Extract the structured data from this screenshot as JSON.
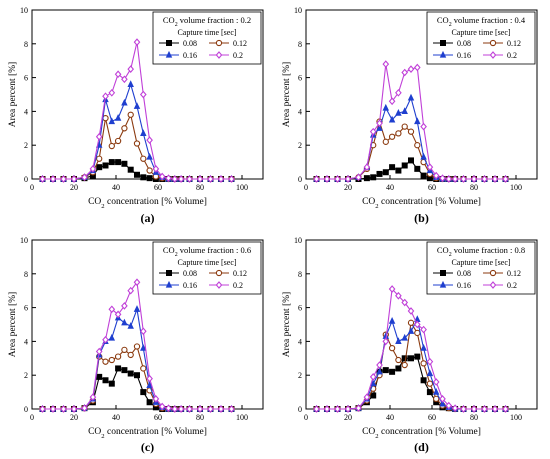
{
  "colors": {
    "s008": "#000000",
    "s012": "#8b3a0f",
    "s016": "#1f3fcf",
    "s02": "#c040d8"
  },
  "markers": {
    "s008": "square",
    "s012": "circle",
    "s016": "triangle",
    "s02": "diamond"
  },
  "chart_data": [
    {
      "type": "line",
      "panel_label": "(a)",
      "annotation_title": "CO₂ volume fraction : 0.2",
      "legend_title": "Capture time [sec]",
      "xlabel": "CO₂ concentration [% Volume]",
      "ylabel": "Area percent [%]",
      "xlim": [
        0,
        110
      ],
      "ylim": [
        0,
        10
      ],
      "x_ticks": [
        0,
        20,
        40,
        60,
        80,
        100
      ],
      "y_ticks": [
        0,
        2,
        4,
        6,
        8,
        10
      ],
      "x": [
        5,
        10,
        15,
        20,
        25,
        29,
        32,
        35,
        38,
        41,
        44,
        47,
        50,
        53,
        56,
        59,
        62,
        65,
        68,
        71,
        75,
        80,
        85,
        90,
        95
      ],
      "series": [
        {
          "name": "0.08",
          "values": [
            0,
            0,
            0,
            0,
            0.05,
            0.2,
            0.7,
            0.8,
            1.0,
            1.0,
            0.9,
            0.55,
            0.25,
            0.1,
            0.05,
            0,
            0,
            0,
            0,
            0,
            0,
            0,
            0,
            0,
            0
          ]
        },
        {
          "name": "0.12",
          "values": [
            0,
            0,
            0,
            0,
            0.1,
            0.4,
            1.2,
            3.6,
            1.95,
            2.25,
            3.0,
            3.8,
            2.1,
            1.2,
            0.5,
            0.15,
            0.05,
            0,
            0,
            0,
            0,
            0,
            0,
            0,
            0
          ]
        },
        {
          "name": "0.16",
          "values": [
            0,
            0,
            0,
            0,
            0.1,
            0.5,
            2.0,
            4.7,
            3.4,
            3.6,
            4.5,
            5.6,
            4.3,
            2.7,
            1.3,
            0.4,
            0.1,
            0,
            0,
            0,
            0,
            0,
            0,
            0,
            0
          ]
        },
        {
          "name": "0.2",
          "values": [
            0,
            0,
            0,
            0,
            0.1,
            0.6,
            2.5,
            4.9,
            5.1,
            6.2,
            5.9,
            6.5,
            8.1,
            5.0,
            2.3,
            0.6,
            0.15,
            0.05,
            0,
            0,
            0,
            0,
            0,
            0,
            0
          ]
        }
      ]
    },
    {
      "type": "line",
      "panel_label": "(b)",
      "annotation_title": "CO₂ volume fraction : 0.4",
      "legend_title": "Capture time [sec]",
      "xlabel": "CO₂ concentration [% Volume]",
      "ylabel": "Area percent [%]",
      "xlim": [
        0,
        110
      ],
      "ylim": [
        0,
        10
      ],
      "x_ticks": [
        0,
        20,
        40,
        60,
        80,
        100
      ],
      "y_ticks": [
        0,
        2,
        4,
        6,
        8,
        10
      ],
      "x": [
        5,
        10,
        15,
        20,
        25,
        29,
        32,
        35,
        38,
        41,
        44,
        47,
        50,
        53,
        56,
        59,
        62,
        65,
        68,
        71,
        75,
        80,
        85,
        90,
        95
      ],
      "series": [
        {
          "name": "0.08",
          "values": [
            0,
            0,
            0,
            0,
            0,
            0.05,
            0.1,
            0.3,
            0.4,
            0.7,
            0.5,
            0.8,
            1.1,
            0.6,
            0.2,
            0.05,
            0,
            0,
            0,
            0,
            0,
            0,
            0,
            0,
            0
          ]
        },
        {
          "name": "0.12",
          "values": [
            0,
            0,
            0,
            0,
            0.1,
            0.6,
            2.0,
            3.4,
            2.2,
            2.5,
            2.7,
            3.1,
            2.8,
            2.0,
            1.0,
            0.3,
            0.05,
            0,
            0,
            0,
            0,
            0,
            0,
            0,
            0
          ]
        },
        {
          "name": "0.16",
          "values": [
            0,
            0,
            0,
            0,
            0.1,
            0.7,
            2.6,
            3.0,
            4.2,
            3.5,
            3.9,
            4.0,
            4.8,
            3.4,
            1.3,
            0.5,
            0.1,
            0,
            0,
            0,
            0,
            0,
            0,
            0,
            0
          ]
        },
        {
          "name": "0.2",
          "values": [
            0,
            0,
            0,
            0,
            0.1,
            0.7,
            2.8,
            3.3,
            6.8,
            4.6,
            5.1,
            6.3,
            6.5,
            6.6,
            3.1,
            0.7,
            0.2,
            0.05,
            0,
            0,
            0,
            0,
            0,
            0,
            0
          ]
        }
      ]
    },
    {
      "type": "line",
      "panel_label": "(c)",
      "annotation_title": "CO₂ volume fraction : 0.6",
      "legend_title": "Capture time [sec]",
      "xlabel": "CO₂ concentration [% Volume]",
      "ylabel": "Area percent [%]",
      "xlim": [
        0,
        110
      ],
      "ylim": [
        0,
        10
      ],
      "x_ticks": [
        0,
        20,
        40,
        60,
        80,
        100
      ],
      "y_ticks": [
        0,
        2,
        4,
        6,
        8,
        10
      ],
      "x": [
        5,
        10,
        15,
        20,
        25,
        29,
        32,
        35,
        38,
        41,
        44,
        47,
        50,
        53,
        56,
        59,
        62,
        65,
        68,
        71,
        75,
        80,
        85,
        90,
        95
      ],
      "series": [
        {
          "name": "0.08",
          "values": [
            0,
            0,
            0,
            0,
            0.05,
            0.4,
            1.9,
            1.7,
            1.5,
            2.4,
            2.3,
            2.1,
            2.0,
            1.0,
            0.4,
            0.1,
            0,
            0,
            0,
            0,
            0,
            0,
            0,
            0,
            0
          ]
        },
        {
          "name": "0.12",
          "values": [
            0,
            0,
            0,
            0,
            0.05,
            0.5,
            3.1,
            2.8,
            2.9,
            3.1,
            3.5,
            3.2,
            3.7,
            2.4,
            1.1,
            0.3,
            0.05,
            0,
            0,
            0,
            0,
            0,
            0,
            0,
            0
          ]
        },
        {
          "name": "0.16",
          "values": [
            0,
            0,
            0,
            0,
            0.05,
            0.6,
            3.2,
            4.0,
            4.2,
            5.4,
            5.1,
            4.9,
            5.9,
            3.6,
            1.4,
            0.4,
            0.1,
            0,
            0,
            0,
            0,
            0,
            0,
            0,
            0
          ]
        },
        {
          "name": "0.2",
          "values": [
            0,
            0,
            0,
            0,
            0.05,
            0.7,
            3.4,
            4.1,
            5.9,
            5.6,
            6.1,
            7.0,
            7.5,
            4.6,
            1.8,
            0.6,
            0.15,
            0.05,
            0,
            0,
            0,
            0,
            0,
            0,
            0
          ]
        }
      ]
    },
    {
      "type": "line",
      "panel_label": "(d)",
      "annotation_title": "CO₂ volume fraction : 0.8",
      "legend_title": "Capture time [sec]",
      "xlabel": "CO₂ concentration [% Volume]",
      "ylabel": "Area percent [%]",
      "xlim": [
        0,
        110
      ],
      "ylim": [
        0,
        10
      ],
      "x_ticks": [
        0,
        20,
        40,
        60,
        80,
        100
      ],
      "y_ticks": [
        0,
        2,
        4,
        6,
        8,
        10
      ],
      "x": [
        5,
        10,
        15,
        20,
        25,
        29,
        32,
        35,
        38,
        41,
        44,
        47,
        50,
        53,
        56,
        59,
        62,
        65,
        68,
        71,
        75,
        80,
        85,
        90,
        95
      ],
      "series": [
        {
          "name": "0.08",
          "values": [
            0,
            0,
            0,
            0,
            0.05,
            0.4,
            0.8,
            2.2,
            2.3,
            2.2,
            2.4,
            3.0,
            3.0,
            3.1,
            1.7,
            1.0,
            0.4,
            0.1,
            0.05,
            0,
            0,
            0,
            0,
            0,
            0
          ]
        },
        {
          "name": "0.12",
          "values": [
            0,
            0,
            0,
            0,
            0.05,
            0.5,
            1.2,
            2.0,
            4.4,
            3.6,
            2.9,
            2.6,
            5.1,
            4.5,
            2.7,
            1.5,
            0.6,
            0.2,
            0.05,
            0,
            0,
            0,
            0,
            0,
            0
          ]
        },
        {
          "name": "0.16",
          "values": [
            0,
            0,
            0,
            0,
            0.05,
            0.6,
            1.5,
            2.2,
            4.3,
            5.2,
            4.0,
            4.2,
            4.6,
            5.3,
            3.6,
            2.1,
            1.0,
            0.3,
            0.1,
            0,
            0,
            0,
            0,
            0,
            0
          ]
        },
        {
          "name": "0.2",
          "values": [
            0,
            0,
            0,
            0,
            0.05,
            0.7,
            1.9,
            2.6,
            4.0,
            7.1,
            6.7,
            6.3,
            5.8,
            5.0,
            4.7,
            2.8,
            1.6,
            0.6,
            0.2,
            0.05,
            0,
            0,
            0,
            0,
            0
          ]
        }
      ]
    }
  ]
}
